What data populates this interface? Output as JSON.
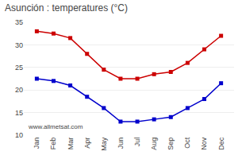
{
  "chart_data": {
    "type": "line",
    "title": "Asunción : temperatures (°C)",
    "categories": [
      "Jan",
      "Feb",
      "Mar",
      "Apr",
      "May",
      "Jun",
      "Jul",
      "Aug",
      "Sep",
      "Oct",
      "Nov",
      "Dec"
    ],
    "series": [
      {
        "color": "#cc0000",
        "values": [
          33,
          32.5,
          31.5,
          28,
          24.5,
          22.5,
          22.5,
          23.5,
          24,
          26,
          29,
          32
        ]
      },
      {
        "color": "#0000cc",
        "values": [
          22.5,
          22,
          21,
          18.5,
          16,
          13,
          13,
          13.5,
          14,
          16,
          18,
          21.5
        ]
      }
    ],
    "marker": "square",
    "ylim": [
      10,
      35
    ],
    "yticks": [
      10,
      15,
      20,
      25,
      30,
      35
    ],
    "grid": true,
    "annotations": [
      "www.allmetsat.com"
    ]
  }
}
